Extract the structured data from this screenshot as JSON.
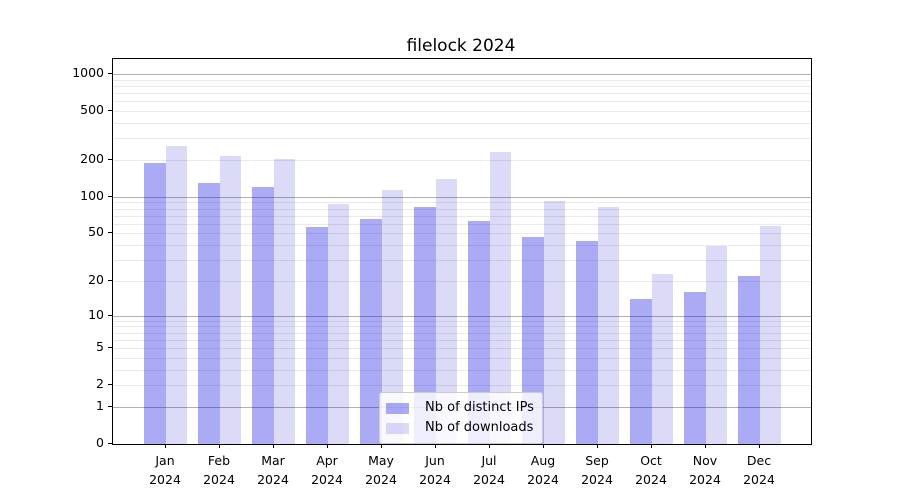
{
  "chart_data": {
    "type": "bar",
    "title": "filelock 2024",
    "categories": [
      "Jan",
      "Feb",
      "Mar",
      "Apr",
      "May",
      "Jun",
      "Jul",
      "Aug",
      "Sep",
      "Oct",
      "Nov",
      "Dec"
    ],
    "category_year": "2024",
    "series": [
      {
        "name": "Nb of distinct IPs",
        "color": "#0000e0",
        "alpha": 0.33,
        "values": [
          190,
          130,
          120,
          56,
          66,
          82,
          63,
          47,
          43,
          14,
          16,
          22
        ]
      },
      {
        "name": "Nb of downloads",
        "color": "#0000cc",
        "alpha": 0.14,
        "values": [
          260,
          215,
          205,
          87,
          113,
          140,
          230,
          92,
          82,
          23,
          39,
          57
        ]
      }
    ],
    "yscale": "log10(1+v)",
    "ylim": [
      0,
      1320
    ],
    "yticks": [
      0,
      1,
      2,
      5,
      10,
      20,
      50,
      100,
      200,
      500,
      1000
    ],
    "grid": {
      "major_values": [
        1,
        10,
        100,
        1000
      ],
      "minor_decades": [
        1,
        10,
        100
      ],
      "major_color": "#b0b0b0",
      "minor_color": "#e9e9ee"
    },
    "legend": {
      "position": "inside-bottom-center"
    },
    "xlabel": "",
    "ylabel": ""
  }
}
